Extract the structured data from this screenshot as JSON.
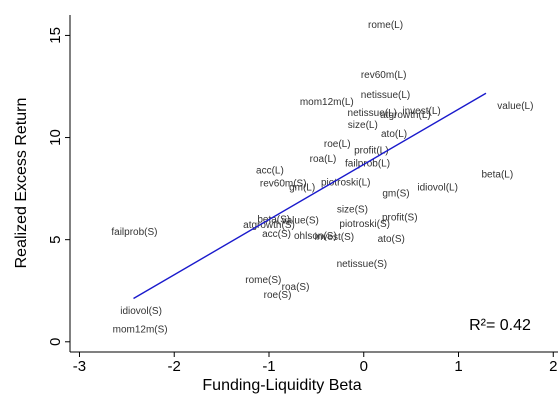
{
  "chart_data": {
    "type": "scatter",
    "x_label": "Funding-Liquidity Beta",
    "y_label": "Realized Excess Return",
    "annotation": "R²= 0.42",
    "point_labels": [
      "rome(L)",
      "rev60m(L)",
      "netissue(L)",
      "mom12m(L)",
      "netissue(L)",
      "atgrowth(L)",
      "invest(L)",
      "value(L)",
      "size(L)",
      "ato(L)",
      "roe(L)",
      "profit(L)",
      "roa(L)",
      "failprob(L)",
      "acc(L)",
      "beta(L)",
      "rev60m(S)",
      "gm(L)",
      "piotroski(L)",
      "idiovol(L)",
      "gm(S)",
      "size(S)",
      "profit(S)",
      "beta(S)",
      "value(S)",
      "atgrowth(S)",
      "piotroski(S)",
      "acc(S)",
      "ohlson(S)",
      "invest(S)",
      "ato(S)",
      "failprob(S)",
      "netissue(S)",
      "rome(S)",
      "roa(S)",
      "roe(S)",
      "idiovol(S)",
      "mom12m(S)"
    ],
    "x": [
      0.23,
      0.21,
      0.23,
      -0.39,
      0.09,
      0.44,
      0.61,
      1.6,
      -0.01,
      0.32,
      -0.28,
      0.08,
      -0.43,
      0.04,
      -0.99,
      1.41,
      -0.85,
      -0.65,
      -0.19,
      0.78,
      0.34,
      -0.12,
      0.38,
      -0.95,
      -0.67,
      -1.0,
      0.01,
      -0.92,
      -0.51,
      -0.31,
      0.29,
      -2.42,
      -0.02,
      -1.06,
      -0.72,
      -0.91,
      -2.35,
      -2.36
    ],
    "values": [
      15.5,
      13.05,
      12.07,
      11.72,
      11.18,
      11.08,
      11.28,
      11.53,
      10.59,
      10.15,
      9.66,
      9.36,
      8.92,
      8.72,
      8.37,
      8.18,
      7.73,
      7.54,
      7.78,
      7.54,
      7.24,
      6.45,
      6.06,
      5.96,
      5.91,
      5.71,
      5.76,
      5.27,
      5.17,
      5.12,
      5.02,
      5.37,
      3.79,
      3.0,
      2.66,
      2.27,
      1.48,
      0.59
    ],
    "point_color": "#333333",
    "fit_line": {
      "x": [
        -2.43,
        1.29
      ],
      "y": [
        2.12,
        12.17
      ],
      "color": "#1a1acc"
    },
    "xlim": [
      -3.1,
      2.05
    ],
    "xticks": [
      -3,
      -2,
      -1,
      0,
      1,
      2
    ],
    "ylim": [
      -0.5,
      16
    ],
    "yticks": [
      0,
      5,
      10,
      15
    ]
  }
}
